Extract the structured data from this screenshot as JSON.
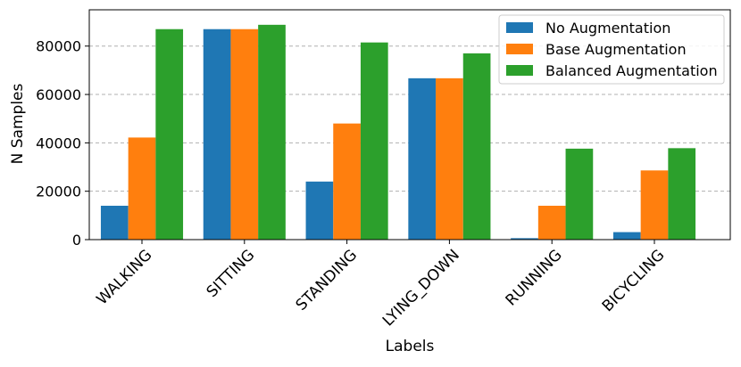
{
  "chart_data": {
    "type": "bar",
    "title": "",
    "xlabel": "Labels",
    "ylabel": "N Samples",
    "ylim": [
      0,
      95000
    ],
    "yticks": [
      0,
      20000,
      40000,
      60000,
      80000
    ],
    "grid": "y-dashed",
    "legend_position": "top-right",
    "categories": [
      "WALKING",
      "SITTING",
      "STANDING",
      "LYING_DOWN",
      "RUNNING",
      "BICYCLING"
    ],
    "series": [
      {
        "name": "No Augmentation",
        "color": "#1f77b4",
        "values": [
          14000,
          87000,
          24000,
          66700,
          600,
          3100
        ]
      },
      {
        "name": "Base Augmentation",
        "color": "#ff7f0e",
        "values": [
          42200,
          87000,
          48000,
          66700,
          14000,
          28600
        ]
      },
      {
        "name": "Balanced Augmentation",
        "color": "#2ca02c",
        "values": [
          87000,
          88800,
          81500,
          77000,
          37600,
          37800
        ]
      }
    ]
  }
}
